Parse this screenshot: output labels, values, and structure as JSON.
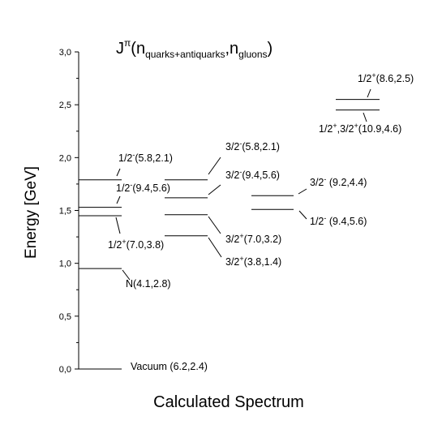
{
  "chart_data": {
    "type": "level-diagram",
    "title": {
      "base": "J",
      "sup": "π",
      "open": "(n",
      "sub1": "quarks+antiquarks",
      "comma": ",n",
      "sub2": "gluons",
      "close": ")"
    },
    "xlabel": "Calculated Spectrum",
    "ylabel": "Energy [GeV]",
    "ylim": [
      0,
      3.0
    ],
    "yticks": [
      "0,0",
      "0,5",
      "1,0",
      "1,5",
      "2,0",
      "2,5",
      "3,0"
    ],
    "ytick_values": [
      0,
      0.5,
      1.0,
      1.5,
      2.0,
      2.5,
      3.0
    ],
    "grid": false,
    "columns": [
      {
        "levels": [
          {
            "energy": 0.0,
            "label": {
              "pre": "Vacuum (6.2,2.4)",
              "sup": "",
              "post": ""
            }
          },
          {
            "energy": 0.95,
            "label": {
              "pre": "N(4.1,2.8)",
              "sup": "",
              "post": ""
            }
          },
          {
            "energy": 1.45,
            "label": {
              "pre": "1/2",
              "sup": "+",
              "post": "(7.0,3.8)"
            }
          },
          {
            "energy": 1.53,
            "label": {
              "pre": "1/2",
              "sup": "-",
              "post": "(9.4,5.6)"
            }
          },
          {
            "energy": 1.79,
            "label": {
              "pre": "1/2",
              "sup": "-",
              "post": "(5.8,2.1)"
            }
          }
        ]
      },
      {
        "levels": [
          {
            "energy": 1.26,
            "label": {
              "pre": "3/2",
              "sup": "+",
              "post": "(3.8,1.4)"
            }
          },
          {
            "energy": 1.46,
            "label": {
              "pre": "3/2",
              "sup": "+",
              "post": "(7.0,3.2)"
            }
          },
          {
            "energy": 1.62,
            "label": {
              "pre": "3/2",
              "sup": "-",
              "post": "(9.4,5.6)"
            }
          },
          {
            "energy": 1.79,
            "label": {
              "pre": "3/2",
              "sup": "-",
              "post": "(5.8,2.1)"
            }
          }
        ]
      },
      {
        "levels": [
          {
            "energy": 1.51,
            "label": {
              "pre": "1/2",
              "sup": "-",
              "post": " (9.4,5.6)"
            }
          },
          {
            "energy": 1.64,
            "label": {
              "pre": "3/2",
              "sup": "-",
              "post": " (9.2,4.4)"
            }
          }
        ]
      },
      {
        "levels": [
          {
            "energy": 2.45,
            "label": {
              "pre": "1/2",
              "sup": "+",
              "post": ",3/2",
              "sup2": "+",
              "post2": "(10.9,4.6)"
            }
          },
          {
            "energy": 2.55,
            "label": {
              "pre": "1/2",
              "sup": "+",
              "post": "(8.6,2.5)"
            }
          }
        ]
      }
    ]
  }
}
